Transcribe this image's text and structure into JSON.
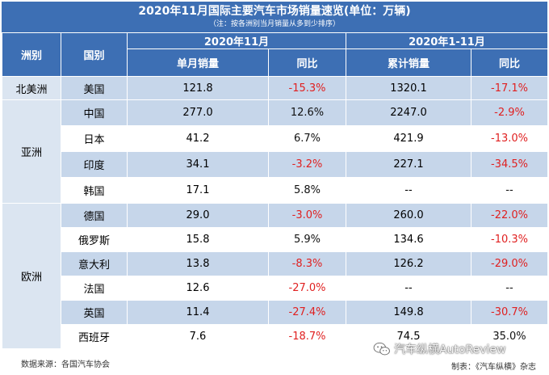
{
  "title": "2020年11月国际主要汽车市场销量速览(单位：万辆)",
  "subtitle": "（注：按各洲别当月销量从多到少排序）",
  "headers": {
    "region": "洲别",
    "country": "国别",
    "period1": "2020年11月",
    "period2": "2020年1-11月",
    "monthly_sales": "单月销量",
    "yoy1": "同比",
    "cumulative_sales": "累计销量",
    "yoy2": "同比"
  },
  "regions": {
    "north_america": "北美洲",
    "asia": "亚洲",
    "europe": "欧洲"
  },
  "rows": [
    {
      "country": "美国",
      "monthly": "121.8",
      "yoy_m": "-15.3%",
      "cumulative": "1320.1",
      "yoy_c": "-17.1%"
    },
    {
      "country": "中国",
      "monthly": "277.0",
      "yoy_m": "12.6%",
      "cumulative": "2247.0",
      "yoy_c": "-2.9%"
    },
    {
      "country": "日本",
      "monthly": "41.2",
      "yoy_m": "6.7%",
      "cumulative": "421.9",
      "yoy_c": "-13.0%"
    },
    {
      "country": "印度",
      "monthly": "34.1",
      "yoy_m": "-3.2%",
      "cumulative": "227.1",
      "yoy_c": "-34.5%"
    },
    {
      "country": "韩国",
      "monthly": "17.1",
      "yoy_m": "5.8%",
      "cumulative": "--",
      "yoy_c": "--"
    },
    {
      "country": "德国",
      "monthly": "29.0",
      "yoy_m": "-3.0%",
      "cumulative": "260.0",
      "yoy_c": "-22.0%"
    },
    {
      "country": "俄罗斯",
      "monthly": "15.8",
      "yoy_m": "5.9%",
      "cumulative": "134.6",
      "yoy_c": "-10.3%"
    },
    {
      "country": "意大利",
      "monthly": "13.8",
      "yoy_m": "-8.3%",
      "cumulative": "126.2",
      "yoy_c": "-29.0%"
    },
    {
      "country": "法国",
      "monthly": "12.6",
      "yoy_m": "-27.0%",
      "cumulative": "--",
      "yoy_c": "--"
    },
    {
      "country": "英国",
      "monthly": "11.4",
      "yoy_m": "-27.4%",
      "cumulative": "149.8",
      "yoy_c": "-30.7%"
    },
    {
      "country": "西班牙",
      "monthly": "7.6",
      "yoy_m": "-18.7%",
      "cumulative": "74.5",
      "yoy_c": "35.0%"
    }
  ],
  "footer": {
    "source": "数据来源：各国汽车协会",
    "maker": "制表：《汽车纵横》杂志",
    "watermark": "汽车纵横AutoReview"
  },
  "colors": {
    "header_bg": "#3d6fb4",
    "stripe": "#c6d6ea",
    "negative": "#e02020"
  },
  "icons": {
    "watermark": "wechat-icon"
  }
}
